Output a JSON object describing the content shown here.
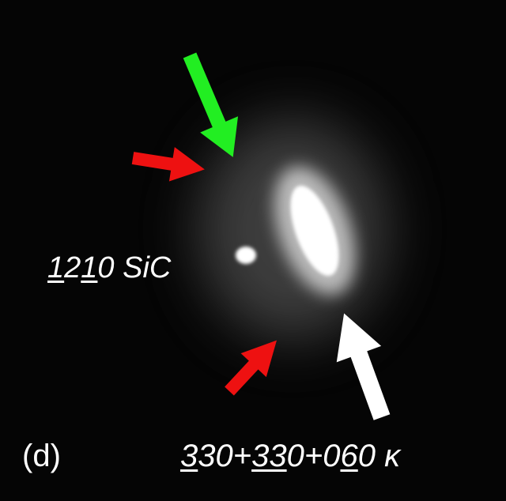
{
  "panel_label": "(d)",
  "labels": [
    {
      "pieces": [
        {
          "text": "1",
          "underline": true
        },
        {
          "text": "2",
          "underline": false
        },
        {
          "text": "1",
          "underline": true
        },
        {
          "text": "0 SiC",
          "underline": false
        }
      ]
    },
    {
      "pieces": [
        {
          "text": "3",
          "underline": true
        },
        {
          "text": "30+",
          "underline": false
        },
        {
          "text": "33",
          "underline": true
        },
        {
          "text": "0+0",
          "underline": false
        },
        {
          "text": "6",
          "underline": true
        },
        {
          "text": "0 κ",
          "underline": false
        }
      ]
    }
  ]
}
